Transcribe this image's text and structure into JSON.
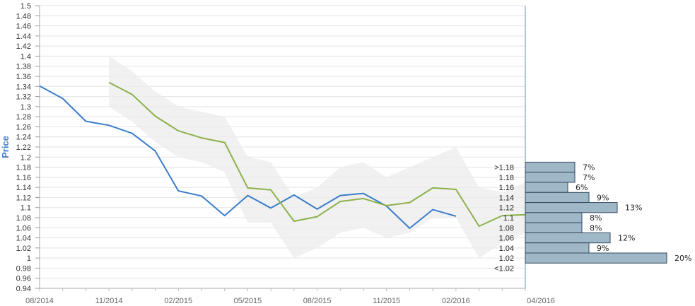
{
  "chart_data": {
    "type": "line",
    "ylabel": "Price",
    "ylim": [
      0.94,
      1.5
    ],
    "ystep": 0.02,
    "x_ticks": [
      "08/2014",
      "11/2014",
      "02/2015",
      "05/2015",
      "08/2015",
      "11/2015",
      "02/2016",
      "04/2016"
    ],
    "x_tick_months": [
      0,
      3,
      6,
      9,
      12,
      15,
      18,
      21
    ],
    "x_range_months": [
      0,
      21
    ],
    "series": [
      {
        "color": "#3a7dc9",
        "x_months": [
          0,
          1,
          2,
          3,
          4,
          5,
          6,
          7,
          8,
          9,
          10,
          11,
          12,
          13,
          14,
          15,
          16,
          17,
          18
        ],
        "values": [
          1.341,
          1.316,
          1.271,
          1.263,
          1.247,
          1.212,
          1.133,
          1.123,
          1.084,
          1.124,
          1.099,
          1.125,
          1.097,
          1.124,
          1.128,
          1.103,
          1.059,
          1.096,
          1.083
        ]
      },
      {
        "color": "#8db04a",
        "x_months": [
          3,
          4,
          5,
          6,
          7,
          8,
          9,
          10,
          11,
          12,
          13,
          14,
          15,
          16,
          17,
          18,
          19,
          20,
          21
        ],
        "values": [
          1.348,
          1.324,
          1.281,
          1.252,
          1.238,
          1.229,
          1.139,
          1.135,
          1.073,
          1.082,
          1.112,
          1.118,
          1.104,
          1.11,
          1.139,
          1.136,
          1.063,
          1.084,
          1.086
        ]
      }
    ],
    "band": {
      "color": "#ececec",
      "x_months": [
        3,
        4,
        5,
        6,
        7,
        8,
        9,
        10,
        11,
        12,
        13,
        14,
        15,
        16,
        17,
        18,
        19,
        20,
        21
      ],
      "upper": [
        1.4,
        1.37,
        1.33,
        1.3,
        1.29,
        1.28,
        1.2,
        1.19,
        1.12,
        1.14,
        1.18,
        1.19,
        1.16,
        1.18,
        1.2,
        1.22,
        1.14,
        1.13,
        1.15
      ],
      "lower": [
        1.3,
        1.27,
        1.23,
        1.2,
        1.19,
        1.17,
        1.07,
        1.07,
        1.0,
        1.02,
        1.05,
        1.06,
        1.04,
        1.05,
        1.08,
        1.08,
        1.0,
        1.03,
        1.05
      ]
    },
    "histogram": {
      "type": "bar",
      "orientation": "horizontal",
      "color": "#9fb8c8",
      "categories": [
        ">1.18",
        "1.18",
        "1.16",
        "1.14",
        "1.12",
        "1.1",
        "1.08",
        "1.06",
        "1.04",
        "1.02",
        "<1.02"
      ],
      "values": [
        7,
        7,
        6,
        9,
        13,
        8,
        8,
        12,
        9,
        20,
        null
      ],
      "value_labels": [
        "7%",
        "7%",
        "6%",
        "9%",
        "13%",
        "8%",
        "8%",
        "12%",
        "9%",
        "20%",
        ""
      ]
    }
  }
}
